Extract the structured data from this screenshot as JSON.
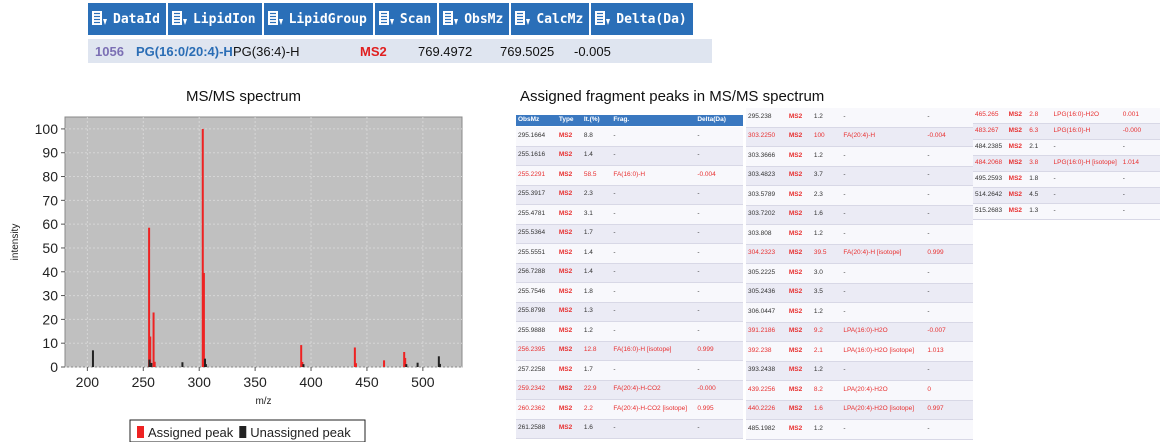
{
  "header_table": {
    "columns": [
      "DataId",
      "LipidIon",
      "LipidGroup",
      "Scan",
      "ObsMz",
      "CalcMz",
      "Delta(Da)"
    ],
    "rows": [
      [
        "1056",
        "PG(16:0/20:4)-H",
        "PG(36:4)-H",
        "MS2",
        "769.4972",
        "769.5025",
        "-0.005"
      ]
    ]
  },
  "chart_data": {
    "type": "bar",
    "title": "MS/MS spectrum",
    "x_label": "m/z",
    "y_label": "intensity",
    "xlim": [
      180,
      535
    ],
    "ylim": [
      0,
      105
    ],
    "xticks": [
      200,
      250,
      300,
      350,
      400,
      450,
      500
    ],
    "yticks": [
      0,
      10,
      20,
      30,
      40,
      50,
      60,
      70,
      80,
      90,
      100
    ],
    "grid": true,
    "legend": "bottom",
    "series": [
      {
        "name": "Assigned peak",
        "color": "#ee2222",
        "x": [
          255.2,
          256.2,
          259.2,
          260.2,
          303.2,
          304.2,
          391.2,
          392.2,
          439.2,
          440.2,
          465.3,
          483.3,
          484.2
        ],
        "values": [
          58.5,
          12.8,
          22.9,
          2.2,
          100,
          39.5,
          9.2,
          2.1,
          8.2,
          1.6,
          2.8,
          6.3,
          3.8
        ]
      },
      {
        "name": "Unassigned peak",
        "color": "#222222",
        "x": [
          205,
          255.5,
          257.2,
          285,
          305.2,
          306,
          393.2,
          485.2,
          495.3,
          514.3,
          515.3
        ],
        "values": [
          7,
          3.1,
          1.7,
          2,
          3.5,
          1.2,
          1.2,
          1.2,
          1.8,
          4.5,
          1.3
        ]
      }
    ]
  },
  "fragment_title": "Assigned fragment peaks in MS/MS spectrum",
  "fragment_tables": [
    {
      "columns": [
        "ObsMz",
        "Type",
        "It.(%)",
        "Frag.",
        "Delta(Da)"
      ],
      "rows": [
        [
          "295.1664",
          "MS2",
          "8.8",
          "-",
          "-"
        ],
        [
          "255.1616",
          "MS2",
          "1.4",
          "-",
          "-"
        ],
        [
          "255.2291",
          "MS2",
          "58.5",
          "FA(16:0)-H",
          "-0.004"
        ],
        [
          "255.3917",
          "MS2",
          "2.3",
          "-",
          "-"
        ],
        [
          "255.4781",
          "MS2",
          "3.1",
          "-",
          "-"
        ],
        [
          "255.5364",
          "MS2",
          "1.7",
          "-",
          "-"
        ],
        [
          "255.5551",
          "MS2",
          "1.4",
          "-",
          "-"
        ],
        [
          "256.7288",
          "MS2",
          "1.4",
          "-",
          "-"
        ],
        [
          "255.7546",
          "MS2",
          "1.8",
          "-",
          "-"
        ],
        [
          "255.8798",
          "MS2",
          "1.3",
          "-",
          "-"
        ],
        [
          "255.9888",
          "MS2",
          "1.2",
          "-",
          "-"
        ],
        [
          "256.2395",
          "MS2",
          "12.8",
          "FA(16:0)-H [isotope]",
          "0.999"
        ],
        [
          "257.2258",
          "MS2",
          "1.7",
          "-",
          "-"
        ],
        [
          "259.2342",
          "MS2",
          "22.9",
          "FA(20:4)-H-CO2",
          "-0.000"
        ],
        [
          "260.2362",
          "MS2",
          "2.2",
          "FA(20:4)-H-CO2 [isotope]",
          "0.995"
        ],
        [
          "261.2588",
          "MS2",
          "1.6",
          "-",
          "-"
        ]
      ]
    },
    {
      "rows": [
        [
          "295.238",
          "MS2",
          "1.2",
          "-",
          "-"
        ],
        [
          "303.2250",
          "MS2",
          "100",
          "FA(20:4)-H",
          "-0.004"
        ],
        [
          "303.3666",
          "MS2",
          "1.2",
          "-",
          "-"
        ],
        [
          "303.4823",
          "MS2",
          "3.7",
          "-",
          "-"
        ],
        [
          "303.5789",
          "MS2",
          "2.3",
          "-",
          "-"
        ],
        [
          "303.7202",
          "MS2",
          "1.6",
          "-",
          "-"
        ],
        [
          "303.808",
          "MS2",
          "1.2",
          "-",
          "-"
        ],
        [
          "304.2323",
          "MS2",
          "39.5",
          "FA(20:4)-H [isotope]",
          "0.999"
        ],
        [
          "305.2225",
          "MS2",
          "3.0",
          "-",
          "-"
        ],
        [
          "305.2436",
          "MS2",
          "3.5",
          "-",
          "-"
        ],
        [
          "306.0447",
          "MS2",
          "1.2",
          "-",
          "-"
        ],
        [
          "391.2186",
          "MS2",
          "9.2",
          "LPA(16:0)-H2O",
          "-0.007"
        ],
        [
          "392.238",
          "MS2",
          "2.1",
          "LPA(16:0)-H2O [isotope]",
          "1.013"
        ],
        [
          "393.2438",
          "MS2",
          "1.2",
          "-",
          "-"
        ],
        [
          "439.2256",
          "MS2",
          "8.2",
          "LPA(20:4)-H2O",
          "0"
        ],
        [
          "440.2226",
          "MS2",
          "1.6",
          "LPA(20:4)-H2O [isotope]",
          "0.997"
        ],
        [
          "485.1982",
          "MS2",
          "1.2",
          "-",
          "-"
        ]
      ]
    },
    {
      "rows": [
        [
          "465.265",
          "MS2",
          "2.8",
          "LPG(16:0)-H2O",
          "0.001"
        ],
        [
          "483.267",
          "MS2",
          "6.3",
          "LPG(16:0)-H",
          "-0.000"
        ],
        [
          "484.2385",
          "MS2",
          "2.1",
          "-",
          "-"
        ],
        [
          "484.2068",
          "MS2",
          "3.8",
          "LPG(16:0)-H [isotope]",
          "1.014"
        ],
        [
          "495.2593",
          "MS2",
          "1.8",
          "-",
          "-"
        ],
        [
          "514.2642",
          "MS2",
          "4.5",
          "-",
          "-"
        ],
        [
          "515.2683",
          "MS2",
          "1.3",
          "-",
          "-"
        ]
      ]
    }
  ]
}
